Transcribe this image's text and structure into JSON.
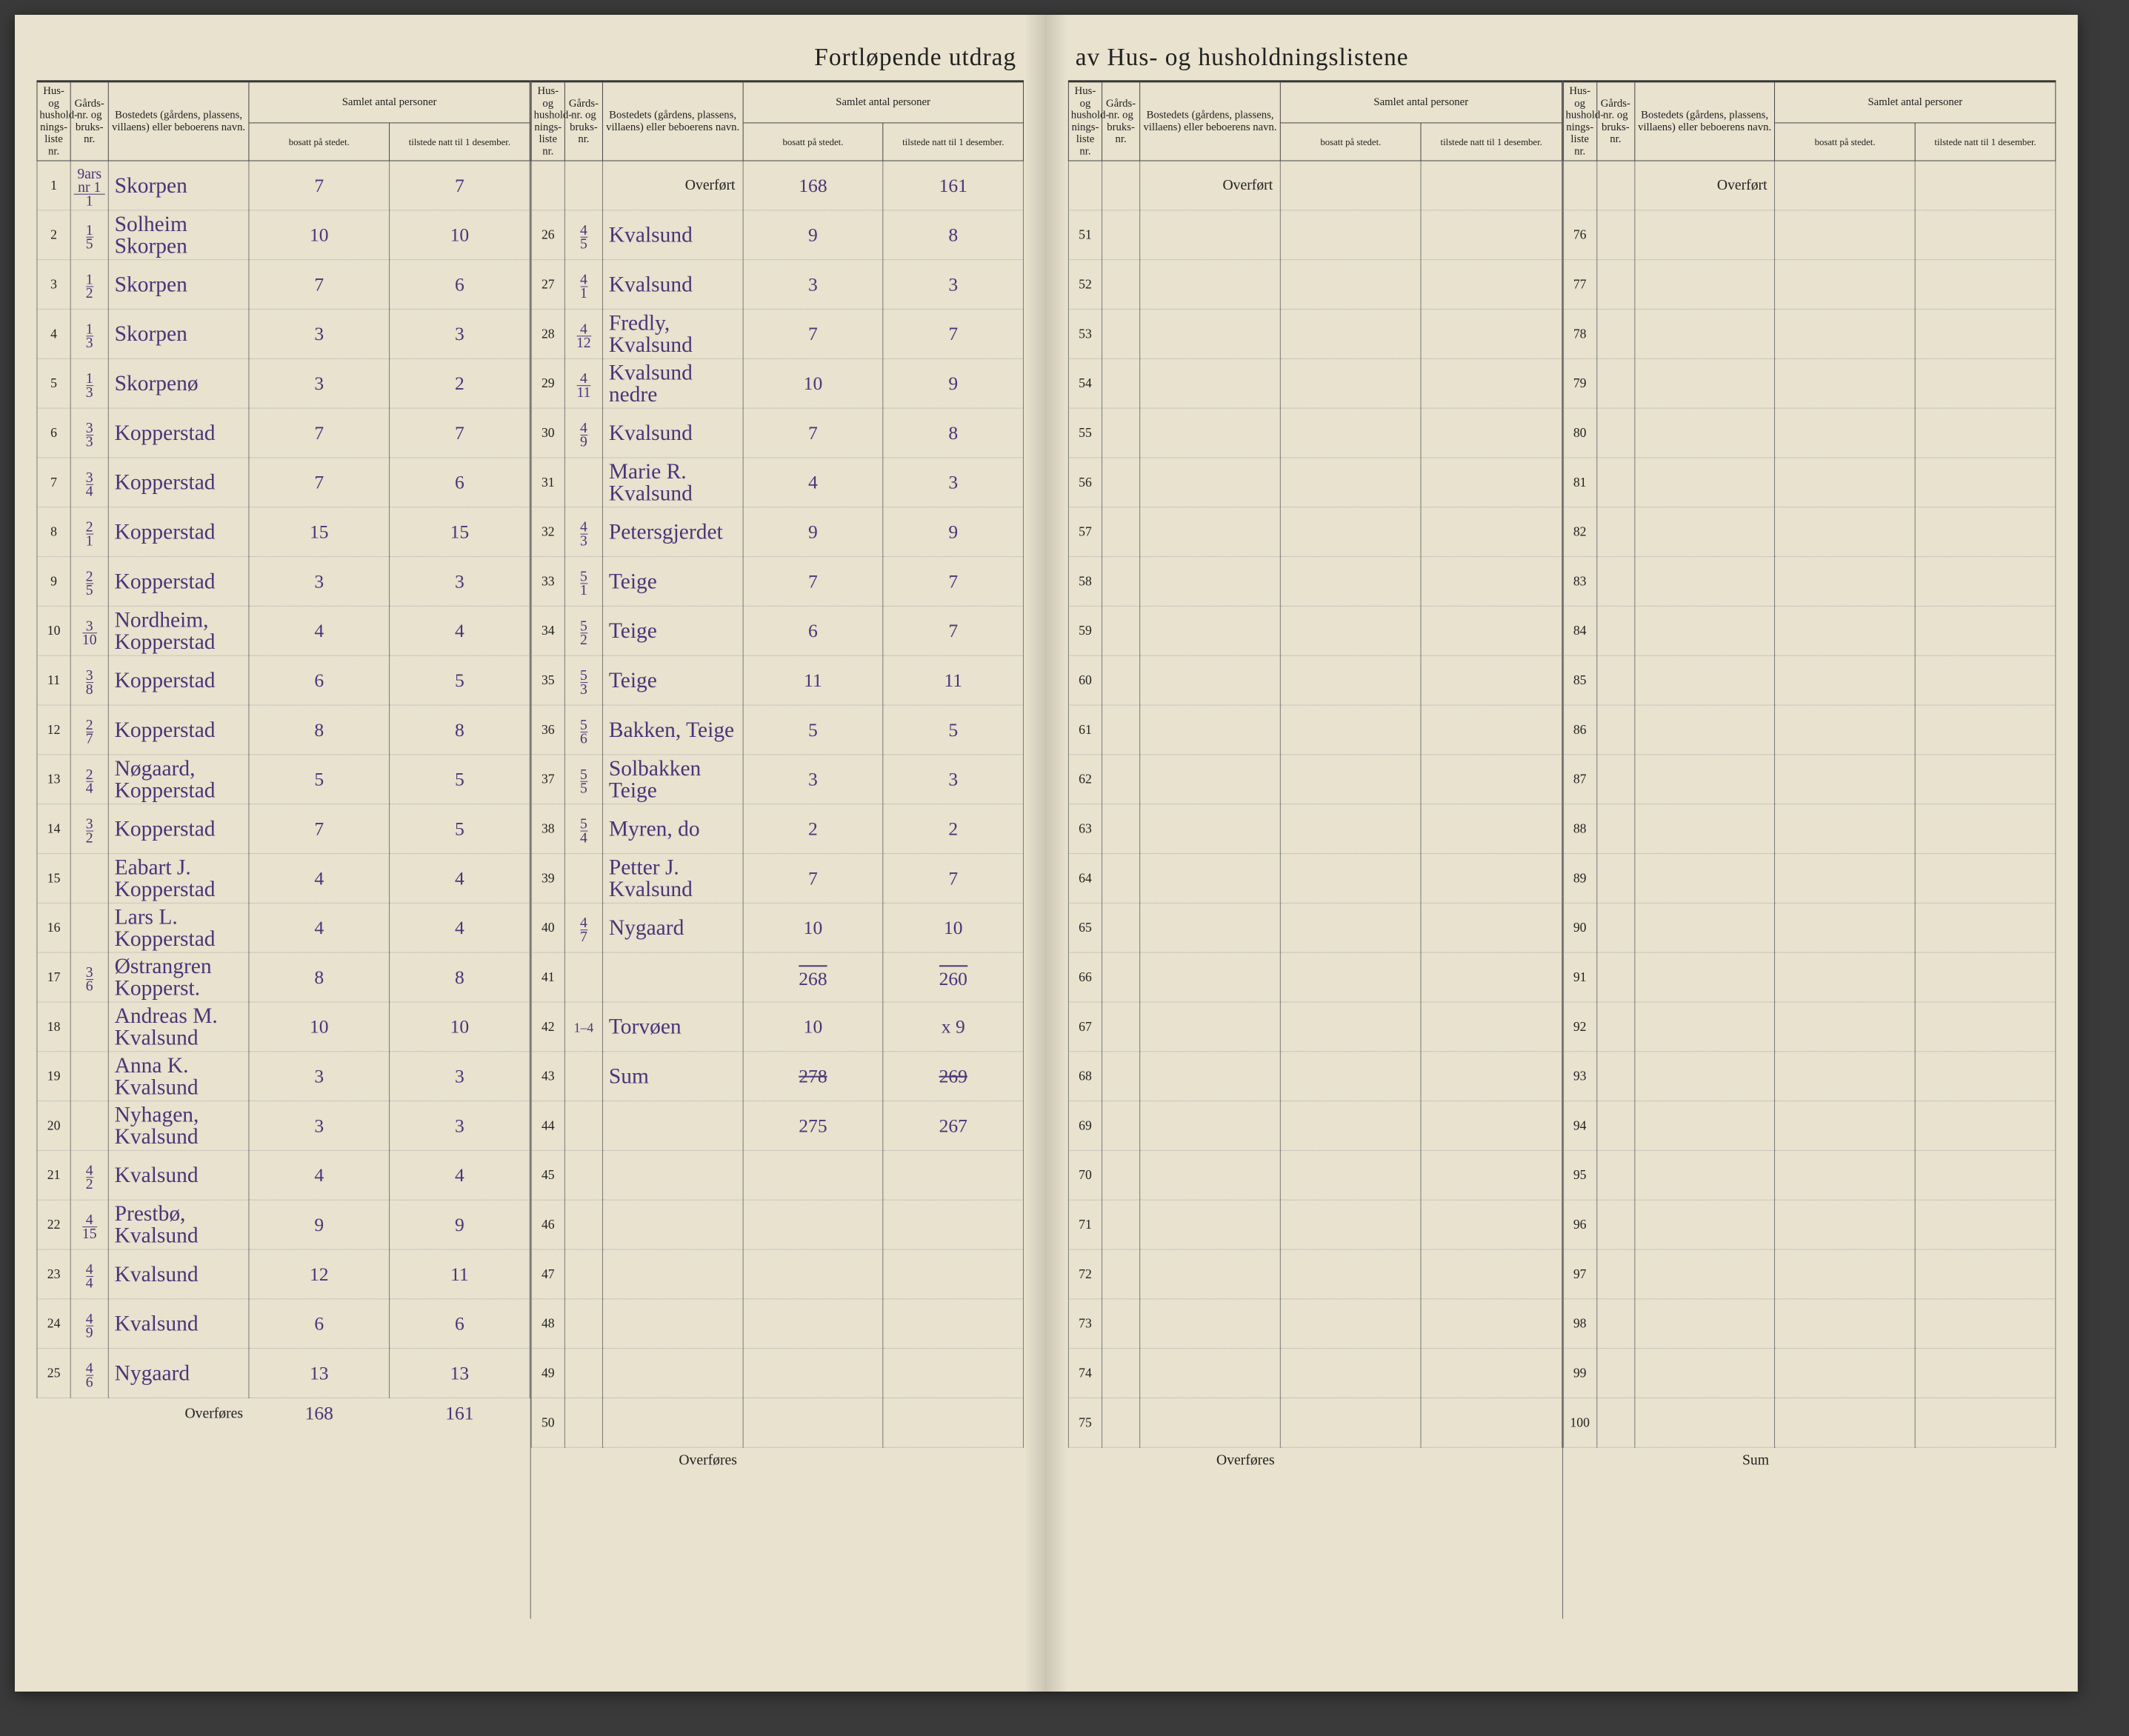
{
  "title_left": "Fortløpende utdrag",
  "title_right": "av Hus- og husholdningslistene",
  "headers": {
    "liste": "Hus- og hushold-nings-liste nr.",
    "gard": "Gårds-nr. og bruks-nr.",
    "navn": "Bostedets (gårdens, plassens, villaens) eller beboerens navn.",
    "samlet": "Samlet antal personer",
    "bosatt": "bosatt på stedet.",
    "tilstede": "tilstede natt til 1 desember."
  },
  "overfort": "Overført",
  "overfores": "Overføres",
  "sum": "Sum",
  "col1": [
    {
      "n": 1,
      "g": "9ars nr 1/1",
      "navn": "Skorpen",
      "b": "7",
      "t": "7"
    },
    {
      "n": 2,
      "g": "1/5",
      "navn": "Solheim Skorpen",
      "b": "10",
      "t": "10"
    },
    {
      "n": 3,
      "g": "1/2",
      "navn": "Skorpen",
      "b": "7",
      "t": "6"
    },
    {
      "n": 4,
      "g": "1/3",
      "navn": "Skorpen",
      "b": "3",
      "t": "3"
    },
    {
      "n": 5,
      "g": "1/3",
      "navn": "Skorpenø",
      "b": "3",
      "t": "2"
    },
    {
      "n": 6,
      "g": "3/3",
      "navn": "Kopperstad",
      "b": "7",
      "t": "7"
    },
    {
      "n": 7,
      "g": "3/4",
      "navn": "Kopperstad",
      "b": "7",
      "t": "6"
    },
    {
      "n": 8,
      "g": "2/1",
      "navn": "Kopperstad",
      "b": "15",
      "t": "15"
    },
    {
      "n": 9,
      "g": "2/5",
      "navn": "Kopperstad",
      "b": "3",
      "t": "3"
    },
    {
      "n": 10,
      "g": "3/10",
      "navn": "Nordheim, Kopperstad",
      "b": "4",
      "t": "4"
    },
    {
      "n": 11,
      "g": "3/8",
      "navn": "Kopperstad",
      "b": "6",
      "t": "5"
    },
    {
      "n": 12,
      "g": "2/7",
      "navn": "Kopperstad",
      "b": "8",
      "t": "8"
    },
    {
      "n": 13,
      "g": "2/4",
      "navn": "Nøgaard, Kopperstad",
      "b": "5",
      "t": "5"
    },
    {
      "n": 14,
      "g": "3/2",
      "navn": "Kopperstad",
      "b": "7",
      "t": "5"
    },
    {
      "n": 15,
      "g": "",
      "navn": "Eabart J. Kopperstad",
      "b": "4",
      "t": "4"
    },
    {
      "n": 16,
      "g": "",
      "navn": "Lars L. Kopperstad",
      "b": "4",
      "t": "4"
    },
    {
      "n": 17,
      "g": "3/6",
      "navn": "Østrangren Kopperst.",
      "b": "8",
      "t": "8"
    },
    {
      "n": 18,
      "g": "",
      "navn": "Andreas M. Kvalsund",
      "b": "10",
      "t": "10"
    },
    {
      "n": 19,
      "g": "",
      "navn": "Anna K. Kvalsund",
      "b": "3",
      "t": "3"
    },
    {
      "n": 20,
      "g": "",
      "navn": "Nyhagen, Kvalsund",
      "b": "3",
      "t": "3"
    },
    {
      "n": 21,
      "g": "4/2",
      "navn": "Kvalsund",
      "b": "4",
      "t": "4"
    },
    {
      "n": 22,
      "g": "4/15",
      "navn": "Prestbø, Kvalsund",
      "b": "9",
      "t": "9"
    },
    {
      "n": 23,
      "g": "4/4",
      "navn": "Kvalsund",
      "b": "12",
      "t": "11"
    },
    {
      "n": 24,
      "g": "4/9",
      "navn": "Kvalsund",
      "b": "6",
      "t": "6"
    },
    {
      "n": 25,
      "g": "4/6",
      "navn": "Nygaard",
      "b": "13",
      "t": "13"
    }
  ],
  "col1_foot": {
    "b": "168",
    "t": "161"
  },
  "col2_over": {
    "b": "168",
    "t": "161"
  },
  "col2": [
    {
      "n": 26,
      "g": "4/5",
      "navn": "Kvalsund",
      "b": "9",
      "t": "8"
    },
    {
      "n": 27,
      "g": "4/1",
      "navn": "Kvalsund",
      "b": "3",
      "t": "3"
    },
    {
      "n": 28,
      "g": "4/12",
      "navn": "Fredly, Kvalsund",
      "b": "7",
      "t": "7"
    },
    {
      "n": 29,
      "g": "4/11",
      "navn": "Kvalsund nedre",
      "b": "10",
      "t": "9"
    },
    {
      "n": 30,
      "g": "4/9",
      "navn": "Kvalsund",
      "b": "7",
      "t": "8"
    },
    {
      "n": 31,
      "g": "",
      "navn": "Marie R. Kvalsund",
      "b": "4",
      "t": "3"
    },
    {
      "n": 32,
      "g": "4/3",
      "navn": "Petersgjerdet",
      "b": "9",
      "t": "9"
    },
    {
      "n": 33,
      "g": "5/1",
      "navn": "Teige",
      "b": "7",
      "t": "7"
    },
    {
      "n": 34,
      "g": "5/2",
      "navn": "Teige",
      "b": "6",
      "t": "7"
    },
    {
      "n": 35,
      "g": "5/3",
      "navn": "Teige",
      "b": "11",
      "t": "11"
    },
    {
      "n": 36,
      "g": "5/6",
      "navn": "Bakken, Teige",
      "b": "5",
      "t": "5"
    },
    {
      "n": 37,
      "g": "5/5",
      "navn": "Solbakken Teige",
      "b": "3",
      "t": "3"
    },
    {
      "n": 38,
      "g": "5/4",
      "navn": "Myren,  do",
      "b": "2",
      "t": "2"
    },
    {
      "n": 39,
      "g": "",
      "navn": "Petter J. Kvalsund",
      "b": "7",
      "t": "7"
    },
    {
      "n": 40,
      "g": "4/7",
      "navn": "Nygaard",
      "b": "10",
      "t": "10"
    },
    {
      "n": 41,
      "g": "",
      "navn": "",
      "b": "268",
      "t": "260",
      "sumline": true
    },
    {
      "n": 42,
      "g": "1–4",
      "navn": "Torvøen",
      "b": "10",
      "t": "x 9"
    },
    {
      "n": 43,
      "g": "",
      "navn": "Sum",
      "b": "278",
      "t": "269",
      "strike": true
    },
    {
      "n": 44,
      "g": "",
      "navn": "",
      "b": "275",
      "t": "267"
    },
    {
      "n": 45
    },
    {
      "n": 46
    },
    {
      "n": 47
    },
    {
      "n": 48
    },
    {
      "n": 49
    },
    {
      "n": 50
    }
  ],
  "col3": [
    51,
    52,
    53,
    54,
    55,
    56,
    57,
    58,
    59,
    60,
    61,
    62,
    63,
    64,
    65,
    66,
    67,
    68,
    69,
    70,
    71,
    72,
    73,
    74,
    75
  ],
  "col4": [
    76,
    77,
    78,
    79,
    80,
    81,
    82,
    83,
    84,
    85,
    86,
    87,
    88,
    89,
    90,
    91,
    92,
    93,
    94,
    95,
    96,
    97,
    98,
    99,
    100
  ]
}
